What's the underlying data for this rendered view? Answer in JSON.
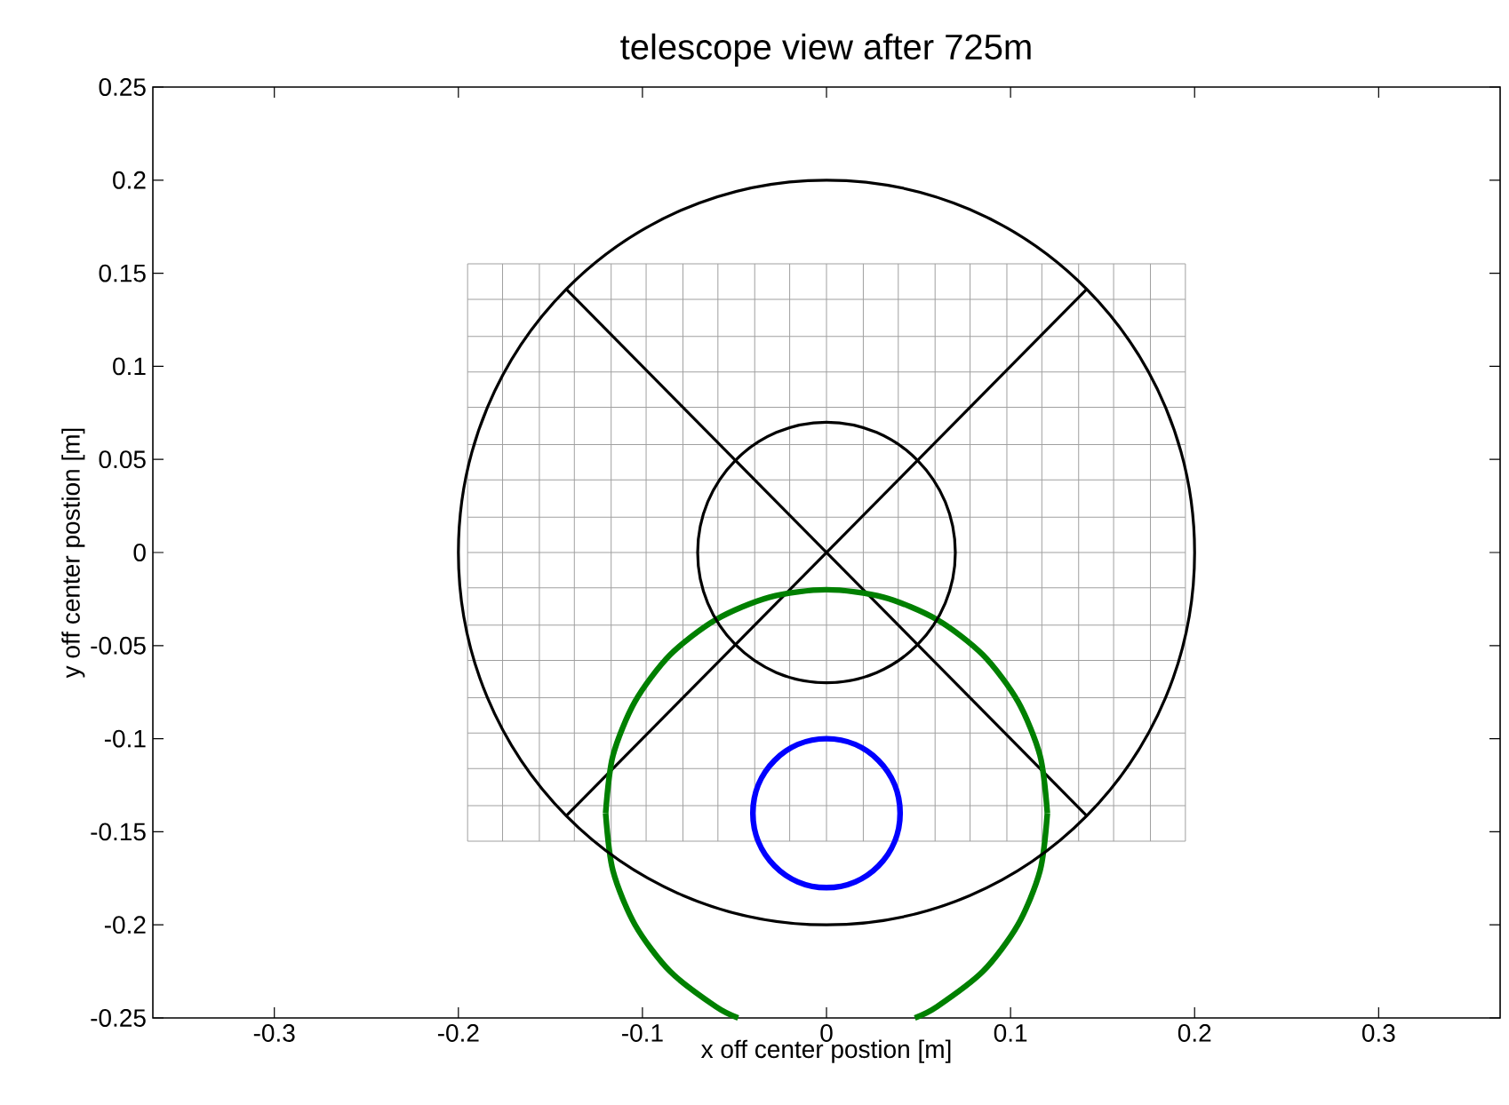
{
  "chart_data": {
    "type": "line",
    "title": "telescope view after 725m",
    "xlabel": "x off center postion [m]",
    "ylabel": "y off center postion [m]",
    "xlim": [
      -0.366,
      0.366
    ],
    "ylim": [
      -0.25,
      0.25
    ],
    "xticks": [
      -0.3,
      -0.2,
      -0.1,
      0,
      0.1,
      0.2,
      0.3
    ],
    "yticks": [
      -0.25,
      -0.2,
      -0.15,
      -0.1,
      -0.05,
      0,
      0.05,
      0.1,
      0.15,
      0.2,
      0.25
    ],
    "grid": false,
    "marker": "none",
    "line_style": "solid",
    "series": [
      {
        "color": "#a0a0a0",
        "x": [
          -0.195,
          -0.195
        ],
        "values": [
          -0.155,
          0.155
        ]
      },
      {
        "color": "#a0a0a0",
        "x": [
          -0.176,
          -0.176
        ],
        "values": [
          -0.155,
          0.155
        ]
      },
      {
        "color": "#a0a0a0",
        "x": [
          -0.156,
          -0.156
        ],
        "values": [
          -0.155,
          0.155
        ]
      },
      {
        "color": "#a0a0a0",
        "x": [
          -0.137,
          -0.137
        ],
        "values": [
          -0.155,
          0.155
        ]
      },
      {
        "color": "#a0a0a0",
        "x": [
          -0.117,
          -0.117
        ],
        "values": [
          -0.155,
          0.155
        ]
      },
      {
        "color": "#a0a0a0",
        "x": [
          -0.098,
          -0.098
        ],
        "values": [
          -0.155,
          0.155
        ]
      },
      {
        "color": "#a0a0a0",
        "x": [
          -0.078,
          -0.078
        ],
        "values": [
          -0.155,
          0.155
        ]
      },
      {
        "color": "#a0a0a0",
        "x": [
          -0.059,
          -0.059
        ],
        "values": [
          -0.155,
          0.155
        ]
      },
      {
        "color": "#a0a0a0",
        "x": [
          -0.039,
          -0.039
        ],
        "values": [
          -0.155,
          0.155
        ]
      },
      {
        "color": "#a0a0a0",
        "x": [
          -0.02,
          -0.02
        ],
        "values": [
          -0.155,
          0.155
        ]
      },
      {
        "color": "#a0a0a0",
        "x": [
          0,
          0
        ],
        "values": [
          -0.155,
          0.155
        ]
      },
      {
        "color": "#a0a0a0",
        "x": [
          0.02,
          0.02
        ],
        "values": [
          -0.155,
          0.155
        ]
      },
      {
        "color": "#a0a0a0",
        "x": [
          0.039,
          0.039
        ],
        "values": [
          -0.155,
          0.155
        ]
      },
      {
        "color": "#a0a0a0",
        "x": [
          0.059,
          0.059
        ],
        "values": [
          -0.155,
          0.155
        ]
      },
      {
        "color": "#a0a0a0",
        "x": [
          0.078,
          0.078
        ],
        "values": [
          -0.155,
          0.155
        ]
      },
      {
        "color": "#a0a0a0",
        "x": [
          0.098,
          0.098
        ],
        "values": [
          -0.155,
          0.155
        ]
      },
      {
        "color": "#a0a0a0",
        "x": [
          0.117,
          0.117
        ],
        "values": [
          -0.155,
          0.155
        ]
      },
      {
        "color": "#a0a0a0",
        "x": [
          0.137,
          0.137
        ],
        "values": [
          -0.155,
          0.155
        ]
      },
      {
        "color": "#a0a0a0",
        "x": [
          0.156,
          0.156
        ],
        "values": [
          -0.155,
          0.155
        ]
      },
      {
        "color": "#a0a0a0",
        "x": [
          0.176,
          0.176
        ],
        "values": [
          -0.155,
          0.155
        ]
      },
      {
        "color": "#a0a0a0",
        "x": [
          0.195,
          0.195
        ],
        "values": [
          -0.155,
          0.155
        ]
      },
      {
        "color": "#a0a0a0",
        "x": [
          -0.195,
          0.195
        ],
        "values": [
          -0.155,
          -0.155
        ]
      },
      {
        "color": "#a0a0a0",
        "x": [
          -0.195,
          0.195
        ],
        "values": [
          -0.136,
          -0.136
        ]
      },
      {
        "color": "#a0a0a0",
        "x": [
          -0.195,
          0.195
        ],
        "values": [
          -0.116,
          -0.116
        ]
      },
      {
        "color": "#a0a0a0",
        "x": [
          -0.195,
          0.195
        ],
        "values": [
          -0.097,
          -0.097
        ]
      },
      {
        "color": "#a0a0a0",
        "x": [
          -0.195,
          0.195
        ],
        "values": [
          -0.078,
          -0.078
        ]
      },
      {
        "color": "#a0a0a0",
        "x": [
          -0.195,
          0.195
        ],
        "values": [
          -0.058,
          -0.058
        ]
      },
      {
        "color": "#a0a0a0",
        "x": [
          -0.195,
          0.195
        ],
        "values": [
          -0.039,
          -0.039
        ]
      },
      {
        "color": "#a0a0a0",
        "x": [
          -0.195,
          0.195
        ],
        "values": [
          -0.019,
          -0.019
        ]
      },
      {
        "color": "#a0a0a0",
        "x": [
          -0.195,
          0.195
        ],
        "values": [
          0,
          0
        ]
      },
      {
        "color": "#a0a0a0",
        "x": [
          -0.195,
          0.195
        ],
        "values": [
          0.019,
          0.019
        ]
      },
      {
        "color": "#a0a0a0",
        "x": [
          -0.195,
          0.195
        ],
        "values": [
          0.039,
          0.039
        ]
      },
      {
        "color": "#a0a0a0",
        "x": [
          -0.195,
          0.195
        ],
        "values": [
          0.058,
          0.058
        ]
      },
      {
        "color": "#a0a0a0",
        "x": [
          -0.195,
          0.195
        ],
        "values": [
          0.078,
          0.078
        ]
      },
      {
        "color": "#a0a0a0",
        "x": [
          -0.195,
          0.195
        ],
        "values": [
          0.097,
          0.097
        ]
      },
      {
        "color": "#a0a0a0",
        "x": [
          -0.195,
          0.195
        ],
        "values": [
          0.116,
          0.116
        ]
      },
      {
        "color": "#a0a0a0",
        "x": [
          -0.195,
          0.195
        ],
        "values": [
          0.136,
          0.136
        ]
      },
      {
        "color": "#a0a0a0",
        "x": [
          -0.195,
          0.195
        ],
        "values": [
          0.155,
          0.155
        ]
      },
      {
        "color": "#000000",
        "x": [
          -0.141,
          0.141
        ],
        "values": [
          0.141,
          -0.141
        ]
      },
      {
        "color": "#000000",
        "x": [
          -0.141,
          0.141
        ],
        "values": [
          -0.141,
          0.141
        ]
      },
      {
        "color": "#008000",
        "x": [
          -0.12,
          -0.116,
          -0.104,
          -0.085,
          -0.06,
          -0.031,
          0,
          0.031,
          0.06,
          0.085,
          0.104,
          0.116,
          0.12
        ],
        "values": [
          -0.14,
          -0.109,
          -0.08,
          -0.055,
          -0.036,
          -0.024,
          -0.02,
          -0.024,
          -0.036,
          -0.055,
          -0.08,
          -0.109,
          -0.14
        ]
      },
      {
        "color": "#008000",
        "x": [
          0.048,
          0.06,
          0.085,
          0.104,
          0.116,
          0.12
        ],
        "values": [
          -0.25,
          -0.244,
          -0.225,
          -0.2,
          -0.171,
          -0.14
        ]
      },
      {
        "color": "#008000",
        "x": [
          -0.12,
          -0.116,
          -0.104,
          -0.085,
          -0.06,
          -0.048
        ],
        "values": [
          -0.14,
          -0.171,
          -0.2,
          -0.225,
          -0.244,
          -0.25
        ]
      }
    ]
  }
}
